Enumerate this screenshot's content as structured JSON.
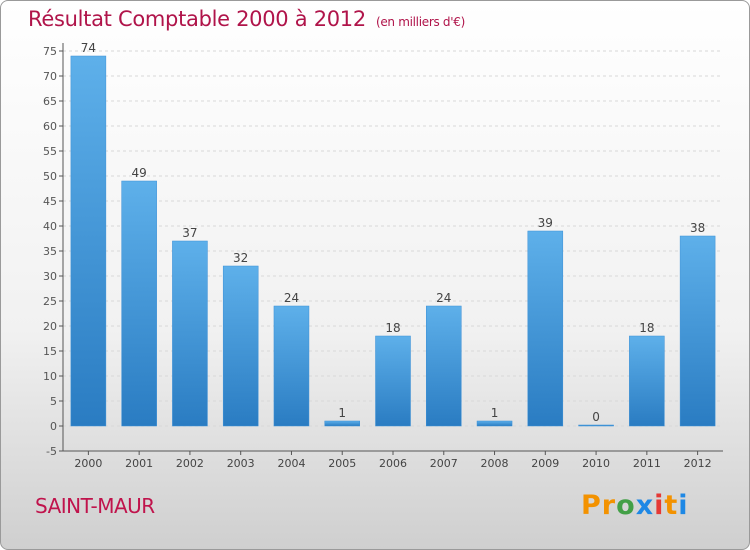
{
  "header": {
    "title": "Résultat Comptable 2000 à 2012",
    "unit": "(en milliers d'€)"
  },
  "footer": {
    "town": "SAINT-MAUR",
    "logo": "Proxiti"
  },
  "colors": {
    "title": "#b0144a",
    "bar_light": "#5eb0ea",
    "bar_dark": "#2a7cc2"
  },
  "chart_data": {
    "type": "bar",
    "title": "Résultat Comptable 2000 à 2012",
    "xlabel": "",
    "ylabel": "",
    "categories": [
      "2000",
      "2001",
      "2002",
      "2003",
      "2004",
      "2005",
      "2006",
      "2007",
      "2008",
      "2009",
      "2010",
      "2011",
      "2012"
    ],
    "values": [
      74,
      49,
      37,
      32,
      24,
      1,
      18,
      24,
      1,
      39,
      0,
      18,
      38
    ],
    "ylim": [
      -5,
      75
    ],
    "yticks": [
      -5,
      0,
      5,
      10,
      15,
      20,
      25,
      30,
      35,
      40,
      45,
      50,
      55,
      60,
      65,
      70,
      75
    ],
    "grid": true,
    "data_labels": true
  }
}
